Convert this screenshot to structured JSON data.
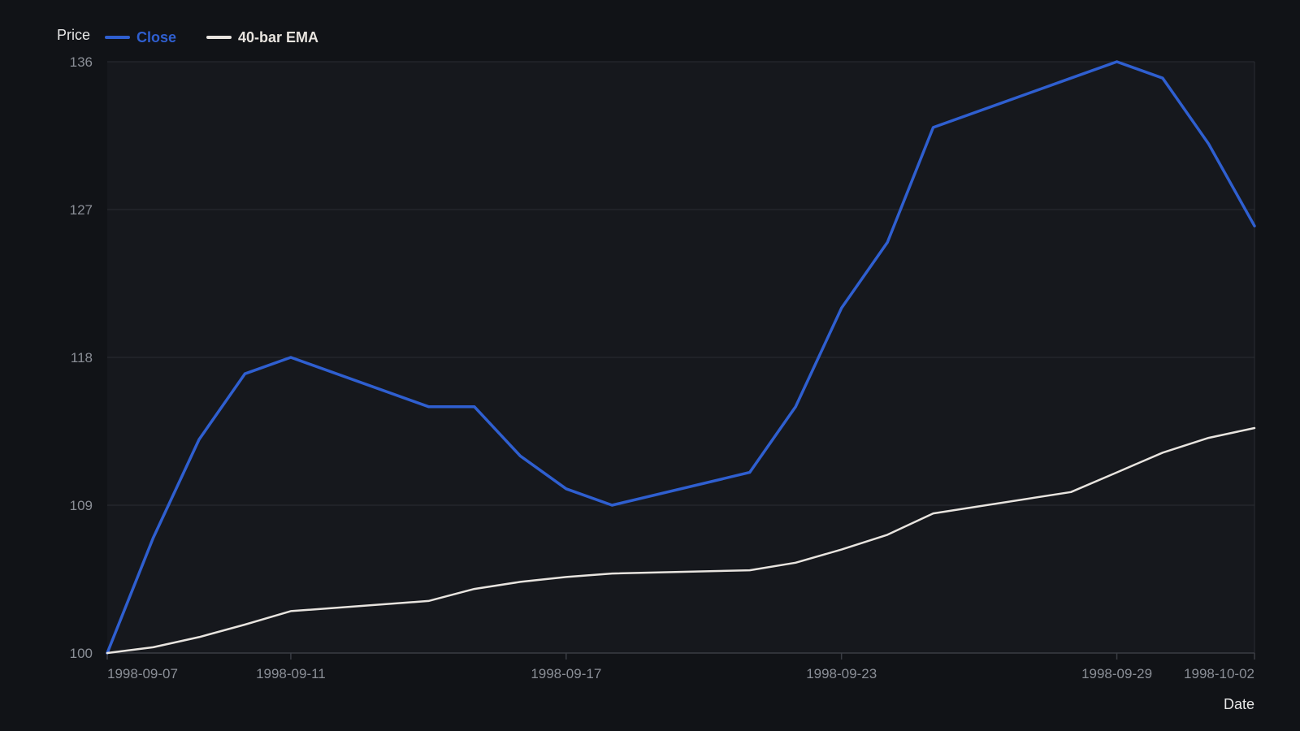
{
  "chart_data": {
    "type": "line",
    "xlabel": "Date",
    "ylabel": "Price",
    "ylim": [
      100,
      136
    ],
    "y_ticks": [
      100,
      109,
      118,
      127,
      136
    ],
    "x_ticks": [
      "1998-09-07",
      "1998-09-11",
      "1998-09-17",
      "1998-09-23",
      "1998-09-29",
      "1998-10-02"
    ],
    "x_range": [
      "1998-09-07",
      "1998-10-02"
    ],
    "grid": true,
    "legend_position": "top-left",
    "x": [
      "1998-09-07",
      "1998-09-08",
      "1998-09-09",
      "1998-09-10",
      "1998-09-11",
      "1998-09-14",
      "1998-09-15",
      "1998-09-16",
      "1998-09-17",
      "1998-09-18",
      "1998-09-21",
      "1998-09-22",
      "1998-09-23",
      "1998-09-24",
      "1998-09-25",
      "1998-09-28",
      "1998-09-29",
      "1998-09-30",
      "1998-10-01",
      "1998-10-02"
    ],
    "series": [
      {
        "name": "Close",
        "color": "#2f5fd0",
        "values": [
          100,
          107,
          113,
          117,
          118,
          115,
          115,
          112,
          110,
          109,
          111,
          115,
          121,
          125,
          132,
          135,
          136,
          135,
          131,
          126
        ]
      },
      {
        "name": "40-bar EMA",
        "color": "#e8e4df",
        "values": [
          100,
          100.35,
          100.97,
          101.73,
          102.55,
          103.17,
          103.9,
          104.33,
          104.63,
          104.84,
          105.04,
          105.5,
          106.3,
          107.2,
          108.5,
          109.8,
          111.0,
          112.2,
          113.1,
          113.7
        ]
      }
    ]
  },
  "colors": {
    "background": "#111317",
    "plot_background": "#16181d",
    "grid": "#2a2d33",
    "axis": "#3a3d44"
  }
}
